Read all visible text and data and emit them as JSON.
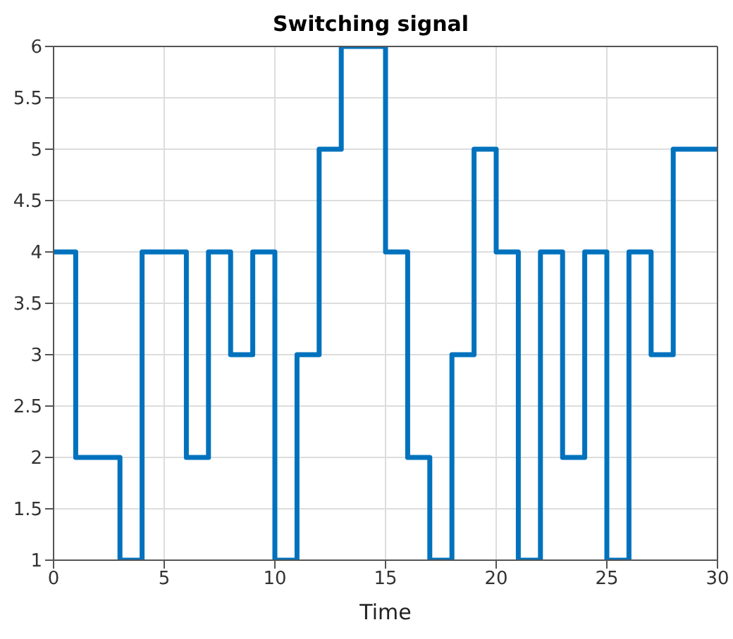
{
  "chart_data": {
    "type": "step",
    "title": "Switching signal",
    "xlabel": "Time",
    "x": [
      0,
      1,
      2,
      3,
      4,
      5,
      6,
      7,
      8,
      9,
      10,
      11,
      12,
      13,
      14,
      15,
      16,
      17,
      18,
      19,
      20,
      21,
      22,
      23,
      24,
      25,
      26,
      27,
      28,
      29,
      30
    ],
    "series": [
      {
        "color": "#0072bd",
        "values": [
          4,
          2,
          2,
          1,
          4,
          4,
          2,
          4,
          3,
          4,
          1,
          3,
          5,
          6,
          6,
          4,
          2,
          1,
          3,
          5,
          4,
          1,
          4,
          2,
          4,
          1,
          4,
          3,
          5,
          5,
          5
        ]
      }
    ],
    "xlim": [
      0,
      30
    ],
    "xticks": [
      0,
      5,
      10,
      15,
      20,
      25,
      30
    ],
    "ylim": [
      1,
      6
    ],
    "yticks": [
      1,
      1.5,
      2,
      2.5,
      3,
      3.5,
      4,
      4.5,
      5,
      5.5,
      6
    ],
    "grid": true,
    "marker": "none",
    "line_style": "solid"
  }
}
